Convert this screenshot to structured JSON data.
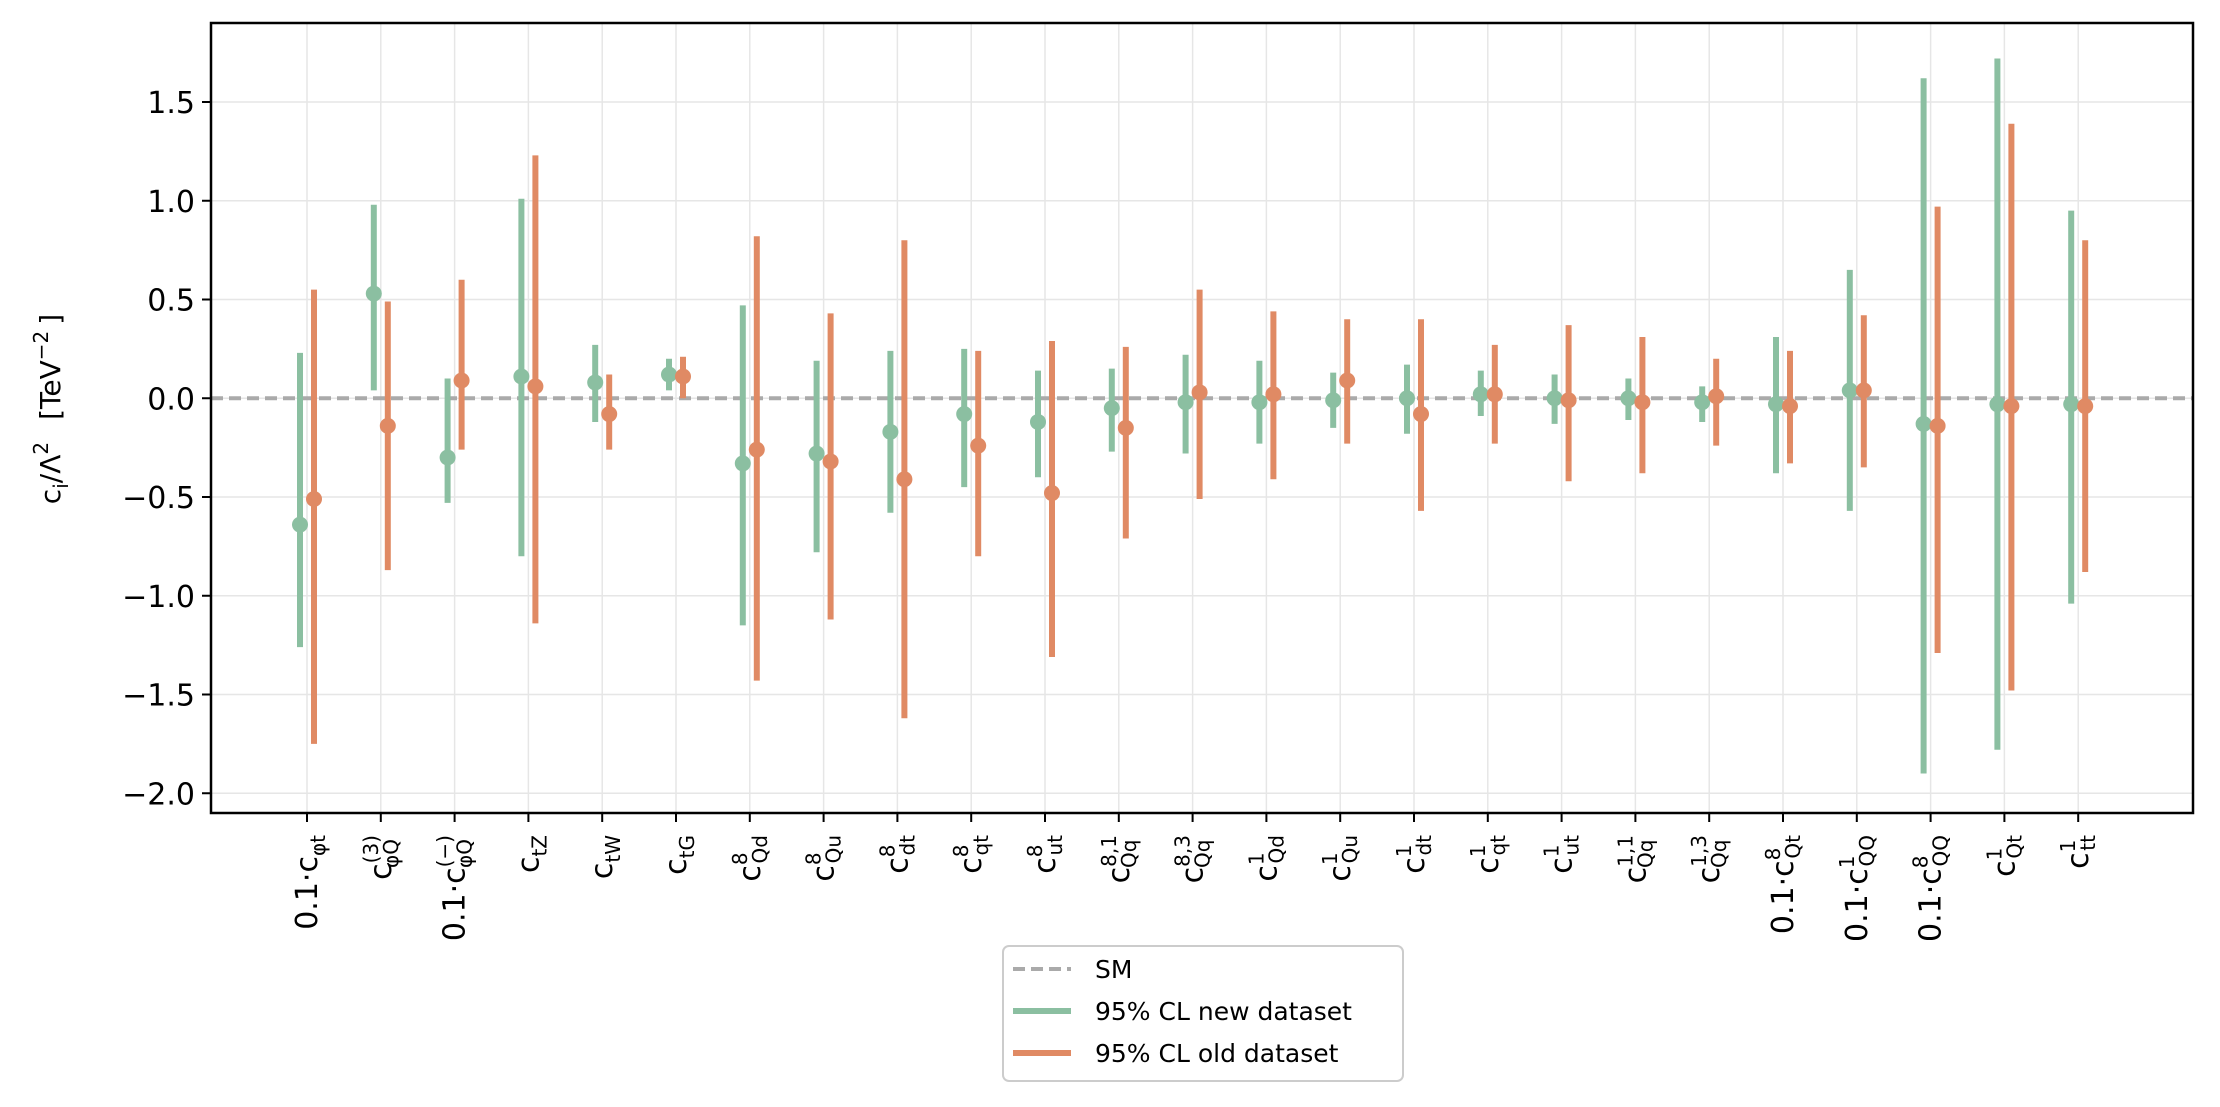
{
  "chart_data": {
    "type": "errorbar",
    "ylabel": "c_i/Λ^2  [TeV^-2]",
    "ylim": [
      -2.1,
      1.9
    ],
    "yticks": [
      -2.0,
      -1.5,
      -1.0,
      -0.5,
      0.0,
      0.5,
      1.0,
      1.5
    ],
    "ytick_labels": [
      "−2.0",
      "−1.5",
      "−1.0",
      "−0.5",
      "0.0",
      "0.5",
      "1.0",
      "1.5"
    ],
    "grid": true,
    "legend_position": "lower-center-outside",
    "categories": [
      {
        "pre": "0.1·",
        "base": "c",
        "sub": "φt",
        "sup": ""
      },
      {
        "pre": "",
        "base": "c",
        "sub": "φQ",
        "sup": "(3)"
      },
      {
        "pre": "0.1·",
        "base": "c",
        "sub": "φQ",
        "sup": "(−)"
      },
      {
        "pre": "",
        "base": "c",
        "sub": "tZ",
        "sup": ""
      },
      {
        "pre": "",
        "base": "c",
        "sub": "tW",
        "sup": ""
      },
      {
        "pre": "",
        "base": "c",
        "sub": "tG",
        "sup": ""
      },
      {
        "pre": "",
        "base": "c",
        "sub": "Qd",
        "sup": "8"
      },
      {
        "pre": "",
        "base": "c",
        "sub": "Qu",
        "sup": "8"
      },
      {
        "pre": "",
        "base": "c",
        "sub": "dt",
        "sup": "8"
      },
      {
        "pre": "",
        "base": "c",
        "sub": "qt",
        "sup": "8"
      },
      {
        "pre": "",
        "base": "c",
        "sub": "ut",
        "sup": "8"
      },
      {
        "pre": "",
        "base": "c",
        "sub": "Qq",
        "sup": "8,1"
      },
      {
        "pre": "",
        "base": "c",
        "sub": "Qq",
        "sup": "8,3"
      },
      {
        "pre": "",
        "base": "c",
        "sub": "Qd",
        "sup": "1"
      },
      {
        "pre": "",
        "base": "c",
        "sub": "Qu",
        "sup": "1"
      },
      {
        "pre": "",
        "base": "c",
        "sub": "dt",
        "sup": "1"
      },
      {
        "pre": "",
        "base": "c",
        "sub": "qt",
        "sup": "1"
      },
      {
        "pre": "",
        "base": "c",
        "sub": "ut",
        "sup": "1"
      },
      {
        "pre": "",
        "base": "c",
        "sub": "Qq",
        "sup": "1,1"
      },
      {
        "pre": "",
        "base": "c",
        "sub": "Qq",
        "sup": "1,3"
      },
      {
        "pre": "0.1·",
        "base": "c",
        "sub": "Qt",
        "sup": "8"
      },
      {
        "pre": "0.1·",
        "base": "c",
        "sub": "QQ",
        "sup": "1"
      },
      {
        "pre": "0.1·",
        "base": "c",
        "sub": "QQ",
        "sup": "8"
      },
      {
        "pre": "",
        "base": "c",
        "sub": "Qt",
        "sup": "1"
      },
      {
        "pre": "",
        "base": "c",
        "sub": "tt",
        "sup": "1"
      }
    ],
    "series": [
      {
        "name": "95% CL new dataset",
        "color": "#8bbfa1",
        "center": [
          -0.64,
          0.53,
          -0.3,
          0.11,
          0.08,
          0.12,
          -0.33,
          -0.28,
          -0.17,
          -0.08,
          -0.12,
          -0.05,
          -0.02,
          -0.02,
          -0.01,
          0.0,
          0.02,
          0.0,
          0.0,
          -0.02,
          -0.03,
          0.04,
          -0.13,
          -0.03,
          -0.03
        ],
        "low": [
          -1.26,
          0.04,
          -0.53,
          -0.8,
          -0.12,
          0.04,
          -1.15,
          -0.78,
          -0.58,
          -0.45,
          -0.4,
          -0.27,
          -0.28,
          -0.23,
          -0.15,
          -0.18,
          -0.09,
          -0.13,
          -0.11,
          -0.12,
          -0.38,
          -0.57,
          -1.9,
          -1.78,
          -1.04
        ],
        "high": [
          0.23,
          0.98,
          0.1,
          1.01,
          0.27,
          0.2,
          0.47,
          0.19,
          0.24,
          0.25,
          0.14,
          0.15,
          0.22,
          0.19,
          0.13,
          0.17,
          0.14,
          0.12,
          0.1,
          0.06,
          0.31,
          0.65,
          1.62,
          1.72,
          0.95
        ]
      },
      {
        "name": "95% CL old dataset",
        "color": "#e08a64",
        "center": [
          -0.51,
          -0.14,
          0.09,
          0.06,
          -0.08,
          0.11,
          -0.26,
          -0.32,
          -0.41,
          -0.24,
          -0.48,
          -0.15,
          0.03,
          0.02,
          0.09,
          -0.08,
          0.02,
          -0.01,
          -0.02,
          0.01,
          -0.04,
          0.04,
          -0.14,
          -0.04,
          -0.04
        ],
        "low": [
          -1.75,
          -0.87,
          -0.26,
          -1.14,
          -0.26,
          0.0,
          -1.43,
          -1.12,
          -1.62,
          -0.8,
          -1.31,
          -0.71,
          -0.51,
          -0.41,
          -0.23,
          -0.57,
          -0.23,
          -0.42,
          -0.38,
          -0.24,
          -0.33,
          -0.35,
          -1.29,
          -1.48,
          -0.88
        ],
        "high": [
          0.55,
          0.49,
          0.6,
          1.23,
          0.12,
          0.21,
          0.82,
          0.43,
          0.8,
          0.24,
          0.29,
          0.26,
          0.55,
          0.44,
          0.4,
          0.4,
          0.27,
          0.37,
          0.31,
          0.2,
          0.24,
          0.42,
          0.97,
          1.39,
          0.8
        ]
      }
    ],
    "reference_line": {
      "name": "SM",
      "value": 0.0,
      "color": "#aaaaaa"
    }
  },
  "legend": {
    "sm_label": "SM",
    "new_label": "95% CL new dataset",
    "old_label": "95% CL old dataset"
  },
  "axis": {
    "ylabel_main": "c",
    "ylabel_sub": "i",
    "ylabel_mid": "/Λ",
    "ylabel_sup": "2",
    "ylabel_unit_pre": "[TeV",
    "ylabel_unit_sup": "−2",
    "ylabel_unit_post": "]"
  }
}
